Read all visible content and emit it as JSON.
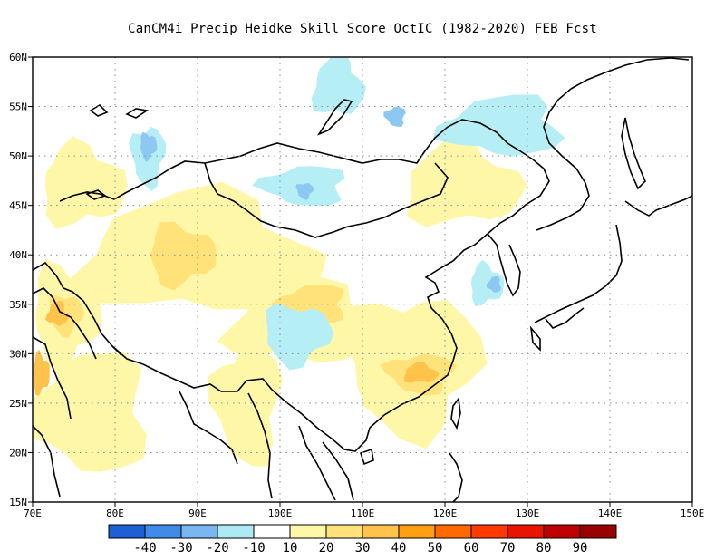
{
  "title": "CanCM4i Precip Heidke Skill Score OctIC (1982-2020) FEB Fcst",
  "map": {
    "lon_range": [
      70,
      150
    ],
    "lat_range": [
      15,
      60
    ],
    "grid": true,
    "lon_ticks": [
      "70E",
      "80E",
      "90E",
      "100E",
      "110E",
      "120E",
      "130E",
      "140E",
      "150E"
    ],
    "lat_ticks": [
      "15N",
      "20N",
      "25N",
      "30N",
      "35N",
      "40N",
      "45N",
      "50N",
      "55N",
      "60N"
    ],
    "skill_regions": [
      {
        "category": "10-20",
        "color": "#fff7a8",
        "lon": 90,
        "lat": 40,
        "rx": 14,
        "ry": 6
      },
      {
        "category": "10-20",
        "color": "#fff7a8",
        "lon": 76,
        "lat": 47,
        "rx": 5,
        "ry": 4
      },
      {
        "category": "10-20",
        "color": "#fff7a8",
        "lon": 74,
        "lat": 34,
        "rx": 4,
        "ry": 5
      },
      {
        "category": "10-20",
        "color": "#fff7a8",
        "lon": 116,
        "lat": 29,
        "rx": 8,
        "ry": 7
      },
      {
        "category": "10-20",
        "color": "#fff7a8",
        "lon": 96,
        "lat": 25,
        "rx": 4,
        "ry": 6
      },
      {
        "category": "10-20",
        "color": "#fff7a8",
        "lon": 77,
        "lat": 24,
        "rx": 7,
        "ry": 6
      },
      {
        "category": "10-20",
        "color": "#fff7a8",
        "lon": 103,
        "lat": 33,
        "rx": 9,
        "ry": 4
      },
      {
        "category": "10-20",
        "color": "#fff7a8",
        "lon": 122,
        "lat": 47,
        "rx": 7,
        "ry": 4
      },
      {
        "category": "20-30",
        "color": "#ffe37a",
        "lon": 88,
        "lat": 40,
        "rx": 4,
        "ry": 3
      },
      {
        "category": "20-30",
        "color": "#ffe37a",
        "lon": 74,
        "lat": 34,
        "rx": 2,
        "ry": 2
      },
      {
        "category": "20-30",
        "color": "#ffe37a",
        "lon": 117,
        "lat": 28,
        "rx": 4,
        "ry": 2
      },
      {
        "category": "20-30",
        "color": "#ffe37a",
        "lon": 104,
        "lat": 35,
        "rx": 4,
        "ry": 2
      },
      {
        "category": "30-40",
        "color": "#ffc24a",
        "lon": 73,
        "lat": 34,
        "rx": 1.2,
        "ry": 1.2
      },
      {
        "category": "30-40",
        "color": "#ffc24a",
        "lon": 117,
        "lat": 28,
        "rx": 2,
        "ry": 1
      },
      {
        "category": "30-40",
        "color": "#ffc24a",
        "lon": 71,
        "lat": 28,
        "rx": 1,
        "ry": 2
      },
      {
        "category": "-10--20",
        "color": "#b5eef5",
        "lon": 102,
        "lat": 32,
        "rx": 4,
        "ry": 3
      },
      {
        "category": "-10--20",
        "color": "#b5eef5",
        "lon": 84,
        "lat": 50,
        "rx": 2,
        "ry": 3
      },
      {
        "category": "-10--20",
        "color": "#b5eef5",
        "lon": 103,
        "lat": 47,
        "rx": 5,
        "ry": 2
      },
      {
        "category": "-10--20",
        "color": "#b5eef5",
        "lon": 127,
        "lat": 53,
        "rx": 7,
        "ry": 3
      },
      {
        "category": "-10--20",
        "color": "#b5eef5",
        "lon": 107,
        "lat": 57,
        "rx": 3,
        "ry": 3
      },
      {
        "category": "-10--20",
        "color": "#b5eef5",
        "lon": 125,
        "lat": 37,
        "rx": 2,
        "ry": 2
      },
      {
        "category": "-20--30",
        "color": "#8dc8f2",
        "lon": 84,
        "lat": 51,
        "rx": 1,
        "ry": 1.3
      },
      {
        "category": "-20--30",
        "color": "#8dc8f2",
        "lon": 103,
        "lat": 46.5,
        "rx": 1,
        "ry": 0.8
      },
      {
        "category": "-20--30",
        "color": "#8dc8f2",
        "lon": 114,
        "lat": 54,
        "rx": 1.2,
        "ry": 1
      },
      {
        "category": "-20--30",
        "color": "#8dc8f2",
        "lon": 126,
        "lat": 37,
        "rx": 0.8,
        "ry": 0.8
      }
    ]
  },
  "colorbar": {
    "colors": [
      "#1f5fd6",
      "#3e8be8",
      "#7ab6f2",
      "#aeeaf4",
      "#ffffff",
      "#fff7a8",
      "#ffe37a",
      "#ffc24a",
      "#ff9f12",
      "#ff6a00",
      "#ff3a00",
      "#e81400",
      "#c00000",
      "#9a0000"
    ],
    "labels": [
      "-40",
      "-30",
      "-20",
      "-10",
      "10",
      "20",
      "30",
      "40",
      "50",
      "60",
      "70",
      "80",
      "90"
    ]
  }
}
